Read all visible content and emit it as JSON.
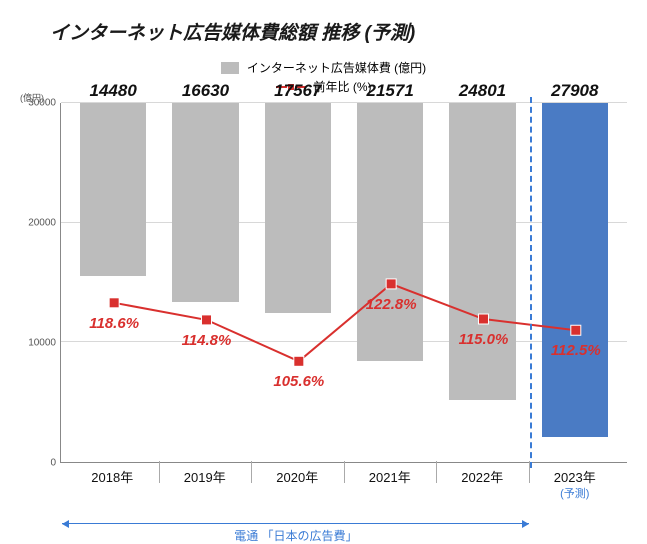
{
  "title": "インターネット広告媒体費総額 推移 (予測)",
  "legend": {
    "bar_label": "インターネット広告媒体費 (億円)",
    "line_label": "前年比 (%)"
  },
  "y_axis": {
    "unit": "(億円)",
    "ticks": [
      0,
      10000,
      20000,
      30000
    ],
    "max": 30000
  },
  "colors": {
    "bar_normal": "#bcbcbc",
    "bar_forecast": "#4a7bc4",
    "line": "#d9302e",
    "line_marker": "#d9302e",
    "yoy_text": "#d9302e",
    "grid": "#d8d8d8",
    "divider": "#3a7bd5",
    "footer": "#3a7bd5"
  },
  "bars": [
    {
      "year": "2018年",
      "value": 14480,
      "yoy": "118.6%",
      "forecast": false
    },
    {
      "year": "2019年",
      "value": 16630,
      "yoy": "114.8%",
      "forecast": false
    },
    {
      "year": "2020年",
      "value": 17567,
      "yoy": "105.6%",
      "forecast": false
    },
    {
      "year": "2021年",
      "value": 21571,
      "yoy": "122.8%",
      "forecast": false
    },
    {
      "year": "2022年",
      "value": 24801,
      "yoy": "115.0%",
      "forecast": false
    },
    {
      "year": "2023年",
      "value": 27908,
      "yoy": "112.5%",
      "forecast": true,
      "sublabel": "(予測)"
    }
  ],
  "line_scale": {
    "min": 95,
    "max": 135
  },
  "footer": {
    "label": "電通 「日本の広告費」",
    "span_bars": 5
  },
  "chart": {
    "bar_width_pct": 72,
    "title_fontsize": 19,
    "value_fontsize": 17,
    "yoy_fontsize": 15
  }
}
